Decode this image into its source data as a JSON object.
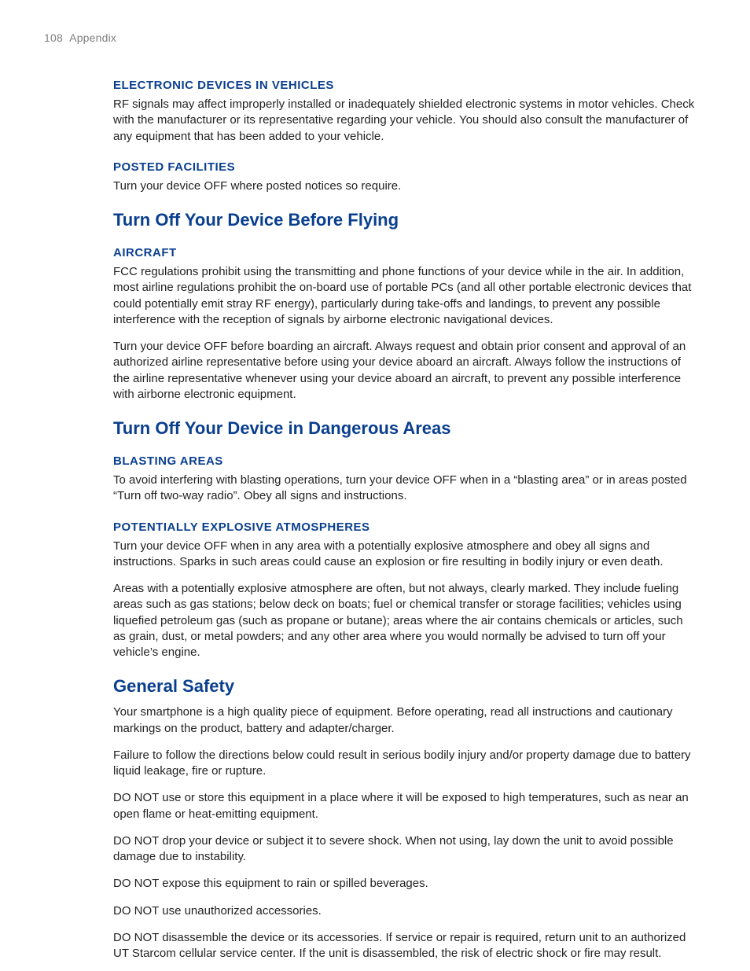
{
  "header": {
    "page_number": "108",
    "label": "Appendix",
    "text_color": "#808080",
    "font_size": 14
  },
  "colors": {
    "heading_blue": "#0a3f8f",
    "body_text": "#222222",
    "background": "#ffffff"
  },
  "typography": {
    "subheading_fontsize": 15,
    "section_heading_fontsize": 22,
    "body_fontsize": 15,
    "subheading_weight": 700,
    "section_heading_weight": 700,
    "body_lineheight": 1.35
  },
  "sections": [
    {
      "subheading": "ELECTRONIC DEVICES IN VEHICLES",
      "paragraphs": [
        "RF signals may affect improperly installed or inadequately shielded electronic systems in motor vehicles. Check with the manufacturer or its representative regarding your vehicle. You should also consult the manufacturer of any equipment that has been added to your vehicle."
      ]
    },
    {
      "subheading": "POSTED FACILITIES",
      "paragraphs": [
        "Turn your device OFF where posted notices so require."
      ]
    },
    {
      "section_heading": "Turn Off Your Device Before Flying"
    },
    {
      "subheading": "AIRCRAFT",
      "paragraphs": [
        "FCC regulations prohibit using the transmitting and phone functions of your device while in the air. In addition, most airline regulations prohibit the on-board use of portable PCs (and all other portable electronic devices that could potentially emit stray RF energy), particularly during take-offs and landings, to prevent any possible interference with the reception of signals by airborne electronic navigational devices.",
        "Turn your device OFF before boarding an aircraft. Always request and obtain prior consent and approval of an authorized airline representative before using your device aboard an aircraft. Always follow the instructions of the airline representative whenever using your device aboard an aircraft, to prevent any possible interference with airborne electronic equipment."
      ]
    },
    {
      "section_heading": "Turn Off Your Device in Dangerous Areas"
    },
    {
      "subheading": "BLASTING AREAS",
      "paragraphs": [
        "To avoid interfering with blasting operations, turn your device OFF when in a “blasting area” or in areas posted “Turn off two-way radio”. Obey all signs and instructions."
      ]
    },
    {
      "subheading": "POTENTIALLY EXPLOSIVE ATMOSPHERES",
      "paragraphs": [
        "Turn your device OFF when in any area with a potentially explosive atmosphere and obey all signs and instructions. Sparks in such areas could cause an explosion or fire resulting in bodily injury or even death.",
        "Areas with a potentially explosive atmosphere are often, but not always, clearly marked. They include fueling areas such as gas stations; below deck on boats; fuel or chemical transfer or storage facilities; vehicles using liquefied petroleum gas (such as propane or butane); areas where the air contains chemicals or articles, such as grain, dust, or metal powders; and any other area where you would normally be advised to turn off your vehicle’s engine."
      ]
    },
    {
      "section_heading": "General Safety",
      "paragraphs": [
        "Your smartphone is a high quality piece of equipment. Before operating, read all instructions and cautionary markings on the product, battery and adapter/charger.",
        "Failure to follow the directions below could result in serious bodily injury and/or property damage due to battery liquid leakage, fire or rupture.",
        "DO NOT use or store this equipment in a place where it will be exposed to high temperatures, such as near an open flame or heat-emitting equipment.",
        "DO NOT drop your device or subject it to severe shock. When not using, lay down the unit to avoid possible damage due to instability.",
        "DO NOT expose this equipment to rain or spilled beverages.",
        "DO NOT use unauthorized accessories.",
        "DO NOT disassemble the device or its accessories. If service or repair is required, return unit to an authorized UT Starcom cellular service center. If the unit is disassembled, the risk of electric shock or fire may result."
      ]
    }
  ]
}
